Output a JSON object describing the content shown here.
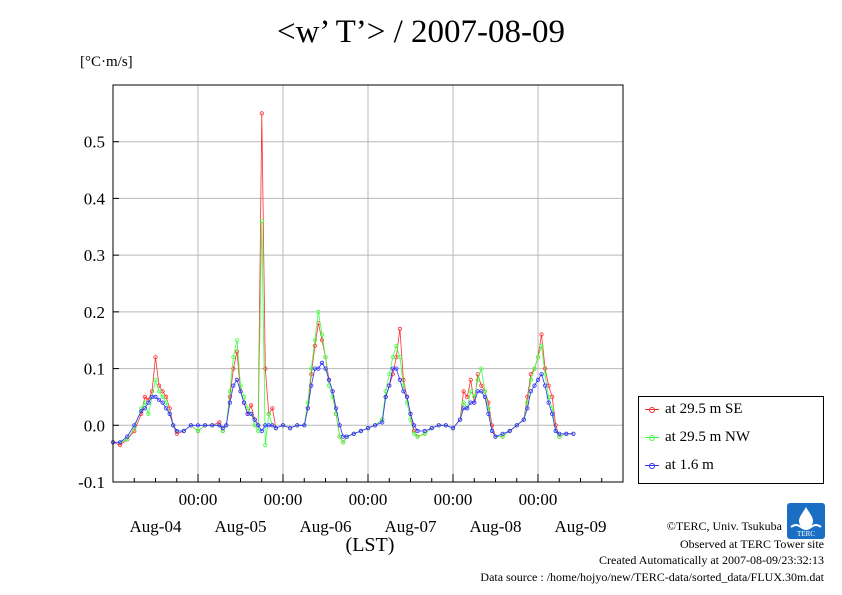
{
  "chart_data": {
    "type": "line",
    "title": "<w’ T’> / 2007-08-09",
    "unit_label": "[°C·m/s]",
    "xlabel": "(LST)",
    "ylim": [
      -0.1,
      0.6
    ],
    "yticks": [
      "-0.1",
      "0.0",
      "0.1",
      "0.2",
      "0.3",
      "0.4",
      "0.5"
    ],
    "ytick_values": [
      -0.1,
      0.0,
      0.1,
      0.2,
      0.3,
      0.4,
      0.5
    ],
    "xlim_hours": [
      0,
      144
    ],
    "x_time_ticks": [
      "00:00",
      "00:00",
      "00:00",
      "00:00",
      "00:00"
    ],
    "x_day_labels": [
      "Aug-04",
      "Aug-05",
      "Aug-06",
      "Aug-07",
      "Aug-08",
      "Aug-09"
    ],
    "grid": true,
    "legend_position": "outside-right-bottom",
    "series": [
      {
        "name": "at 29.5 m SE",
        "color": "#ff3030",
        "points": [
          [
            0,
            -0.03
          ],
          [
            2,
            -0.035
          ],
          [
            4,
            -0.025
          ],
          [
            6,
            -0.01
          ],
          [
            8,
            0.02
          ],
          [
            9,
            0.05
          ],
          [
            10,
            0.045
          ],
          [
            11,
            0.06
          ],
          [
            12,
            0.12
          ],
          [
            13,
            0.07
          ],
          [
            14,
            0.06
          ],
          [
            15,
            0.05
          ],
          [
            16,
            0.03
          ],
          [
            17,
            0.0
          ],
          [
            18,
            -0.015
          ],
          [
            20,
            -0.01
          ],
          [
            22,
            0.0
          ],
          [
            24,
            -0.01
          ],
          [
            26,
            0.0
          ],
          [
            28,
            0.0
          ],
          [
            30,
            0.005
          ],
          [
            31,
            -0.01
          ],
          [
            32,
            0.0
          ],
          [
            33,
            0.05
          ],
          [
            34,
            0.1
          ],
          [
            35,
            0.13
          ],
          [
            36,
            0.06
          ],
          [
            37,
            0.04
          ],
          [
            38,
            0.02
          ],
          [
            39,
            0.035
          ],
          [
            40,
            0.01
          ],
          [
            41,
            0.0
          ],
          [
            42,
            0.55
          ],
          [
            43,
            0.1
          ],
          [
            44,
            0.02
          ],
          [
            45,
            0.03
          ],
          [
            46,
            -0.005
          ],
          [
            48,
            0.0
          ],
          [
            50,
            -0.005
          ],
          [
            52,
            0.0
          ],
          [
            54,
            0.0
          ],
          [
            55,
            0.03
          ],
          [
            56,
            0.09
          ],
          [
            57,
            0.14
          ],
          [
            58,
            0.18
          ],
          [
            59,
            0.15
          ],
          [
            60,
            0.12
          ],
          [
            61,
            0.08
          ],
          [
            62,
            0.06
          ],
          [
            63,
            0.02
          ],
          [
            64,
            -0.02
          ],
          [
            65,
            -0.03
          ],
          [
            66,
            -0.02
          ],
          [
            68,
            -0.015
          ],
          [
            70,
            -0.01
          ],
          [
            72,
            -0.005
          ],
          [
            74,
            0.0
          ],
          [
            76,
            0.01
          ],
          [
            77,
            0.05
          ],
          [
            78,
            0.07
          ],
          [
            79,
            0.09
          ],
          [
            80,
            0.12
          ],
          [
            81,
            0.17
          ],
          [
            82,
            0.08
          ],
          [
            83,
            0.05
          ],
          [
            84,
            0.02
          ],
          [
            85,
            -0.01
          ],
          [
            86,
            -0.02
          ],
          [
            88,
            -0.015
          ],
          [
            90,
            -0.005
          ],
          [
            92,
            0.0
          ],
          [
            94,
            0.0
          ],
          [
            96,
            -0.005
          ],
          [
            98,
            0.01
          ],
          [
            99,
            0.06
          ],
          [
            100,
            0.05
          ],
          [
            101,
            0.08
          ],
          [
            102,
            0.04
          ],
          [
            103,
            0.09
          ],
          [
            104,
            0.07
          ],
          [
            105,
            0.06
          ],
          [
            106,
            0.04
          ],
          [
            107,
            0.0
          ],
          [
            108,
            -0.02
          ],
          [
            110,
            -0.02
          ],
          [
            112,
            -0.01
          ],
          [
            114,
            0.0
          ],
          [
            116,
            0.01
          ],
          [
            117,
            0.05
          ],
          [
            118,
            0.09
          ],
          [
            119,
            0.1
          ],
          [
            120,
            0.12
          ],
          [
            121,
            0.16
          ],
          [
            122,
            0.1
          ],
          [
            123,
            0.07
          ],
          [
            124,
            0.05
          ],
          [
            125,
            0.0
          ],
          [
            126,
            -0.02
          ],
          [
            128,
            -0.015
          ],
          [
            130,
            -0.015
          ]
        ]
      },
      {
        "name": "at 29.5 m NW",
        "color": "#40ff40",
        "points": [
          [
            0,
            -0.03
          ],
          [
            2,
            -0.03
          ],
          [
            4,
            -0.025
          ],
          [
            6,
            -0.005
          ],
          [
            8,
            0.03
          ],
          [
            9,
            0.04
          ],
          [
            10,
            0.02
          ],
          [
            11,
            0.05
          ],
          [
            12,
            0.08
          ],
          [
            13,
            0.06
          ],
          [
            14,
            0.05
          ],
          [
            15,
            0.04
          ],
          [
            16,
            0.02
          ],
          [
            17,
            0.0
          ],
          [
            18,
            -0.01
          ],
          [
            20,
            -0.01
          ],
          [
            22,
            0.0
          ],
          [
            24,
            -0.01
          ],
          [
            26,
            0.0
          ],
          [
            28,
            0.0
          ],
          [
            30,
            0.0
          ],
          [
            31,
            -0.01
          ],
          [
            32,
            0.0
          ],
          [
            33,
            0.06
          ],
          [
            34,
            0.12
          ],
          [
            35,
            0.15
          ],
          [
            36,
            0.07
          ],
          [
            37,
            0.05
          ],
          [
            38,
            0.03
          ],
          [
            39,
            0.02
          ],
          [
            40,
            0.0
          ],
          [
            41,
            -0.01
          ],
          [
            42,
            0.36
          ],
          [
            43,
            -0.035
          ],
          [
            44,
            0.02
          ],
          [
            45,
            0.0
          ],
          [
            46,
            -0.005
          ],
          [
            48,
            0.0
          ],
          [
            50,
            -0.005
          ],
          [
            52,
            0.0
          ],
          [
            54,
            0.0
          ],
          [
            55,
            0.04
          ],
          [
            56,
            0.1
          ],
          [
            57,
            0.15
          ],
          [
            58,
            0.2
          ],
          [
            59,
            0.16
          ],
          [
            60,
            0.12
          ],
          [
            61,
            0.07
          ],
          [
            62,
            0.05
          ],
          [
            63,
            0.02
          ],
          [
            64,
            -0.02
          ],
          [
            65,
            -0.03
          ],
          [
            66,
            -0.02
          ],
          [
            68,
            -0.015
          ],
          [
            70,
            -0.01
          ],
          [
            72,
            -0.005
          ],
          [
            74,
            0.0
          ],
          [
            76,
            0.01
          ],
          [
            77,
            0.06
          ],
          [
            78,
            0.09
          ],
          [
            79,
            0.12
          ],
          [
            80,
            0.14
          ],
          [
            81,
            0.12
          ],
          [
            82,
            0.07
          ],
          [
            83,
            0.04
          ],
          [
            84,
            0.01
          ],
          [
            85,
            -0.015
          ],
          [
            86,
            -0.02
          ],
          [
            88,
            -0.015
          ],
          [
            90,
            -0.005
          ],
          [
            92,
            0.0
          ],
          [
            94,
            0.0
          ],
          [
            96,
            -0.005
          ],
          [
            98,
            0.01
          ],
          [
            99,
            0.04
          ],
          [
            100,
            0.03
          ],
          [
            101,
            0.06
          ],
          [
            102,
            0.05
          ],
          [
            103,
            0.08
          ],
          [
            104,
            0.1
          ],
          [
            105,
            0.06
          ],
          [
            106,
            0.03
          ],
          [
            107,
            -0.01
          ],
          [
            108,
            -0.02
          ],
          [
            110,
            -0.02
          ],
          [
            112,
            -0.01
          ],
          [
            114,
            0.0
          ],
          [
            116,
            0.01
          ],
          [
            117,
            0.04
          ],
          [
            118,
            0.08
          ],
          [
            119,
            0.1
          ],
          [
            120,
            0.12
          ],
          [
            121,
            0.14
          ],
          [
            122,
            0.09
          ],
          [
            123,
            0.05
          ],
          [
            124,
            0.03
          ],
          [
            125,
            -0.01
          ],
          [
            126,
            -0.02
          ],
          [
            128,
            -0.015
          ],
          [
            130,
            -0.015
          ]
        ]
      },
      {
        "name": "at 1.6 m",
        "color": "#3030ff",
        "points": [
          [
            0,
            -0.03
          ],
          [
            2,
            -0.03
          ],
          [
            4,
            -0.02
          ],
          [
            6,
            0.0
          ],
          [
            8,
            0.025
          ],
          [
            9,
            0.03
          ],
          [
            10,
            0.04
          ],
          [
            11,
            0.05
          ],
          [
            12,
            0.05
          ],
          [
            13,
            0.045
          ],
          [
            14,
            0.04
          ],
          [
            15,
            0.03
          ],
          [
            16,
            0.02
          ],
          [
            17,
            0.0
          ],
          [
            18,
            -0.01
          ],
          [
            20,
            -0.01
          ],
          [
            22,
            0.0
          ],
          [
            24,
            0.0
          ],
          [
            26,
            0.0
          ],
          [
            28,
            0.0
          ],
          [
            30,
            0.0
          ],
          [
            31,
            -0.005
          ],
          [
            32,
            0.0
          ],
          [
            33,
            0.04
          ],
          [
            34,
            0.07
          ],
          [
            35,
            0.08
          ],
          [
            36,
            0.06
          ],
          [
            37,
            0.04
          ],
          [
            38,
            0.02
          ],
          [
            39,
            0.02
          ],
          [
            40,
            0.01
          ],
          [
            41,
            0.0
          ],
          [
            42,
            -0.01
          ],
          [
            43,
            0.0
          ],
          [
            44,
            0.0
          ],
          [
            45,
            0.0
          ],
          [
            46,
            -0.005
          ],
          [
            48,
            0.0
          ],
          [
            50,
            -0.005
          ],
          [
            52,
            0.0
          ],
          [
            54,
            0.0
          ],
          [
            55,
            0.03
          ],
          [
            56,
            0.07
          ],
          [
            57,
            0.1
          ],
          [
            58,
            0.1
          ],
          [
            59,
            0.11
          ],
          [
            60,
            0.1
          ],
          [
            61,
            0.08
          ],
          [
            62,
            0.06
          ],
          [
            63,
            0.03
          ],
          [
            64,
            0.0
          ],
          [
            65,
            -0.02
          ],
          [
            66,
            -0.02
          ],
          [
            68,
            -0.015
          ],
          [
            70,
            -0.01
          ],
          [
            72,
            -0.005
          ],
          [
            74,
            0.0
          ],
          [
            76,
            0.005
          ],
          [
            77,
            0.05
          ],
          [
            78,
            0.07
          ],
          [
            79,
            0.1
          ],
          [
            80,
            0.1
          ],
          [
            81,
            0.08
          ],
          [
            82,
            0.06
          ],
          [
            83,
            0.05
          ],
          [
            84,
            0.02
          ],
          [
            85,
            0.0
          ],
          [
            86,
            -0.01
          ],
          [
            88,
            -0.01
          ],
          [
            90,
            -0.005
          ],
          [
            92,
            0.0
          ],
          [
            94,
            0.0
          ],
          [
            96,
            -0.005
          ],
          [
            98,
            0.01
          ],
          [
            99,
            0.03
          ],
          [
            100,
            0.03
          ],
          [
            101,
            0.04
          ],
          [
            102,
            0.04
          ],
          [
            103,
            0.06
          ],
          [
            104,
            0.06
          ],
          [
            105,
            0.05
          ],
          [
            106,
            0.02
          ],
          [
            107,
            -0.01
          ],
          [
            108,
            -0.02
          ],
          [
            110,
            -0.015
          ],
          [
            112,
            -0.01
          ],
          [
            114,
            0.0
          ],
          [
            116,
            0.01
          ],
          [
            117,
            0.03
          ],
          [
            118,
            0.06
          ],
          [
            119,
            0.07
          ],
          [
            120,
            0.08
          ],
          [
            121,
            0.09
          ],
          [
            122,
            0.07
          ],
          [
            123,
            0.04
          ],
          [
            124,
            0.02
          ],
          [
            125,
            -0.01
          ],
          [
            126,
            -0.015
          ],
          [
            128,
            -0.015
          ],
          [
            130,
            -0.015
          ]
        ]
      }
    ]
  },
  "footer": {
    "credit": "©TERC, Univ. Tsukuba",
    "observed": "Observed at TERC Tower site",
    "created": "Created Automatically at 2007-08-09/23:32:13",
    "source": "Data source : /home/hojyo/new/TERC-data/sorted_data/FLUX.30m.dat",
    "logo_text": "TERC"
  }
}
